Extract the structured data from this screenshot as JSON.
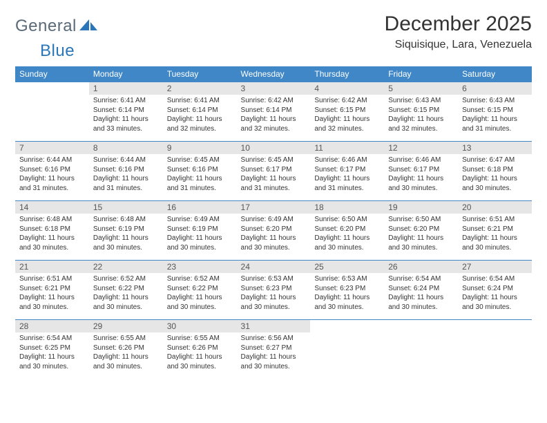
{
  "logo": {
    "word1": "General",
    "word2": "Blue"
  },
  "title": "December 2025",
  "location": "Siquisique, Lara, Venezuela",
  "colors": {
    "header_bg": "#3f87c7",
    "header_text": "#ffffff",
    "daynum_bg": "#e6e6e6",
    "border": "#3f87c7",
    "logo_gray": "#5a6a78",
    "logo_blue": "#2a76b8"
  },
  "fonts": {
    "title_size_pt": 22,
    "location_size_pt": 12,
    "header_size_pt": 9,
    "daynum_size_pt": 9,
    "body_size_pt": 7.5
  },
  "calendar": {
    "type": "table",
    "columns": [
      "Sunday",
      "Monday",
      "Tuesday",
      "Wednesday",
      "Thursday",
      "Friday",
      "Saturday"
    ],
    "first_weekday_index": 1,
    "weeks": [
      [
        null,
        {
          "n": "1",
          "sunrise": "6:41 AM",
          "sunset": "6:14 PM",
          "daylight": "11 hours and 33 minutes."
        },
        {
          "n": "2",
          "sunrise": "6:41 AM",
          "sunset": "6:14 PM",
          "daylight": "11 hours and 32 minutes."
        },
        {
          "n": "3",
          "sunrise": "6:42 AM",
          "sunset": "6:14 PM",
          "daylight": "11 hours and 32 minutes."
        },
        {
          "n": "4",
          "sunrise": "6:42 AM",
          "sunset": "6:15 PM",
          "daylight": "11 hours and 32 minutes."
        },
        {
          "n": "5",
          "sunrise": "6:43 AM",
          "sunset": "6:15 PM",
          "daylight": "11 hours and 32 minutes."
        },
        {
          "n": "6",
          "sunrise": "6:43 AM",
          "sunset": "6:15 PM",
          "daylight": "11 hours and 31 minutes."
        }
      ],
      [
        {
          "n": "7",
          "sunrise": "6:44 AM",
          "sunset": "6:16 PM",
          "daylight": "11 hours and 31 minutes."
        },
        {
          "n": "8",
          "sunrise": "6:44 AM",
          "sunset": "6:16 PM",
          "daylight": "11 hours and 31 minutes."
        },
        {
          "n": "9",
          "sunrise": "6:45 AM",
          "sunset": "6:16 PM",
          "daylight": "11 hours and 31 minutes."
        },
        {
          "n": "10",
          "sunrise": "6:45 AM",
          "sunset": "6:17 PM",
          "daylight": "11 hours and 31 minutes."
        },
        {
          "n": "11",
          "sunrise": "6:46 AM",
          "sunset": "6:17 PM",
          "daylight": "11 hours and 31 minutes."
        },
        {
          "n": "12",
          "sunrise": "6:46 AM",
          "sunset": "6:17 PM",
          "daylight": "11 hours and 30 minutes."
        },
        {
          "n": "13",
          "sunrise": "6:47 AM",
          "sunset": "6:18 PM",
          "daylight": "11 hours and 30 minutes."
        }
      ],
      [
        {
          "n": "14",
          "sunrise": "6:48 AM",
          "sunset": "6:18 PM",
          "daylight": "11 hours and 30 minutes."
        },
        {
          "n": "15",
          "sunrise": "6:48 AM",
          "sunset": "6:19 PM",
          "daylight": "11 hours and 30 minutes."
        },
        {
          "n": "16",
          "sunrise": "6:49 AM",
          "sunset": "6:19 PM",
          "daylight": "11 hours and 30 minutes."
        },
        {
          "n": "17",
          "sunrise": "6:49 AM",
          "sunset": "6:20 PM",
          "daylight": "11 hours and 30 minutes."
        },
        {
          "n": "18",
          "sunrise": "6:50 AM",
          "sunset": "6:20 PM",
          "daylight": "11 hours and 30 minutes."
        },
        {
          "n": "19",
          "sunrise": "6:50 AM",
          "sunset": "6:20 PM",
          "daylight": "11 hours and 30 minutes."
        },
        {
          "n": "20",
          "sunrise": "6:51 AM",
          "sunset": "6:21 PM",
          "daylight": "11 hours and 30 minutes."
        }
      ],
      [
        {
          "n": "21",
          "sunrise": "6:51 AM",
          "sunset": "6:21 PM",
          "daylight": "11 hours and 30 minutes."
        },
        {
          "n": "22",
          "sunrise": "6:52 AM",
          "sunset": "6:22 PM",
          "daylight": "11 hours and 30 minutes."
        },
        {
          "n": "23",
          "sunrise": "6:52 AM",
          "sunset": "6:22 PM",
          "daylight": "11 hours and 30 minutes."
        },
        {
          "n": "24",
          "sunrise": "6:53 AM",
          "sunset": "6:23 PM",
          "daylight": "11 hours and 30 minutes."
        },
        {
          "n": "25",
          "sunrise": "6:53 AM",
          "sunset": "6:23 PM",
          "daylight": "11 hours and 30 minutes."
        },
        {
          "n": "26",
          "sunrise": "6:54 AM",
          "sunset": "6:24 PM",
          "daylight": "11 hours and 30 minutes."
        },
        {
          "n": "27",
          "sunrise": "6:54 AM",
          "sunset": "6:24 PM",
          "daylight": "11 hours and 30 minutes."
        }
      ],
      [
        {
          "n": "28",
          "sunrise": "6:54 AM",
          "sunset": "6:25 PM",
          "daylight": "11 hours and 30 minutes."
        },
        {
          "n": "29",
          "sunrise": "6:55 AM",
          "sunset": "6:26 PM",
          "daylight": "11 hours and 30 minutes."
        },
        {
          "n": "30",
          "sunrise": "6:55 AM",
          "sunset": "6:26 PM",
          "daylight": "11 hours and 30 minutes."
        },
        {
          "n": "31",
          "sunrise": "6:56 AM",
          "sunset": "6:27 PM",
          "daylight": "11 hours and 30 minutes."
        },
        null,
        null,
        null
      ]
    ],
    "labels": {
      "sunrise": "Sunrise:",
      "sunset": "Sunset:",
      "daylight": "Daylight:"
    }
  }
}
